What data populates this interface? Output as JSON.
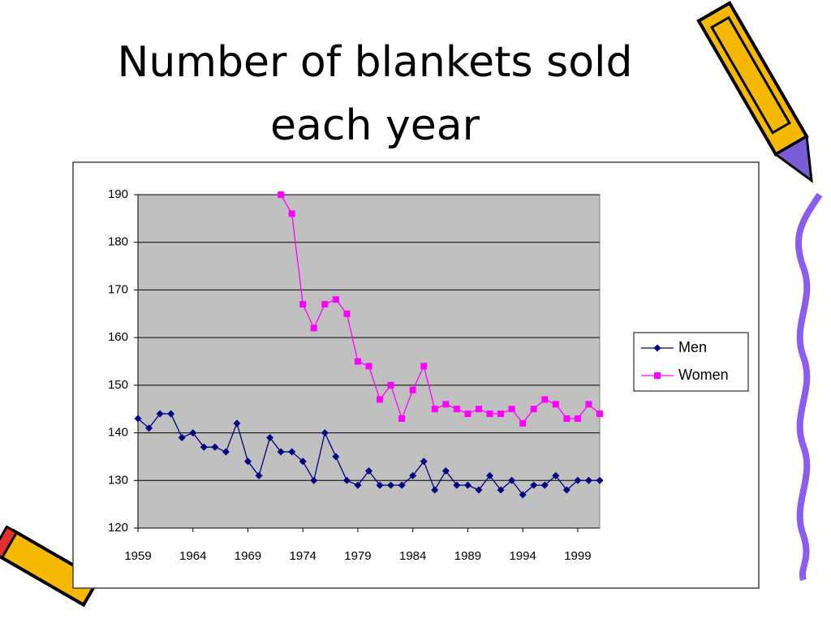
{
  "chart_data": {
    "type": "line",
    "title": "Number of blankets sold each year",
    "x": [
      1959,
      1960,
      1961,
      1962,
      1963,
      1964,
      1965,
      1966,
      1967,
      1968,
      1969,
      1970,
      1971,
      1972,
      1973,
      1974,
      1975,
      1976,
      1977,
      1978,
      1979,
      1980,
      1981,
      1982,
      1983,
      1984,
      1985,
      1986,
      1987,
      1988,
      1989,
      1990,
      1991,
      1992,
      1993,
      1994,
      1995,
      1996,
      1997,
      1998,
      1999,
      2000,
      2001
    ],
    "series": [
      {
        "name": "Men",
        "color": "#000080",
        "marker": "diamond",
        "values": [
          143,
          141,
          144,
          144,
          139,
          140,
          137,
          137,
          136,
          142,
          134,
          131,
          139,
          136,
          136,
          134,
          130,
          140,
          135,
          130,
          129,
          132,
          129,
          129,
          129,
          131,
          134,
          128,
          132,
          129,
          129,
          128,
          131,
          128,
          130,
          127,
          129,
          129,
          131,
          128,
          130,
          130,
          130
        ]
      },
      {
        "name": "Women",
        "color": "#ff00ff",
        "marker": "square",
        "values": [
          null,
          null,
          null,
          null,
          null,
          null,
          null,
          null,
          null,
          null,
          null,
          null,
          null,
          190,
          186,
          167,
          162,
          167,
          168,
          165,
          155,
          154,
          147,
          150,
          143,
          149,
          154,
          145,
          146,
          145,
          144,
          145,
          144,
          144,
          145,
          142,
          145,
          147,
          146,
          143,
          143,
          146,
          144
        ]
      }
    ],
    "xlim": [
      1959,
      2001
    ],
    "xticks": [
      1959,
      1964,
      1969,
      1974,
      1979,
      1984,
      1989,
      1994,
      1999
    ],
    "ylim": [
      120,
      190
    ],
    "yticks": [
      120,
      130,
      140,
      150,
      160,
      170,
      180,
      190
    ],
    "grid": true,
    "legend": "right"
  }
}
